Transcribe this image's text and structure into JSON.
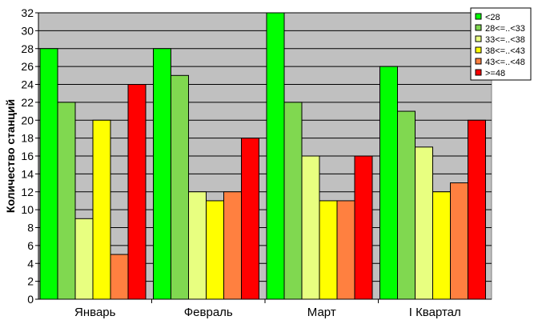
{
  "chart_data": {
    "type": "bar",
    "ylabel": "Количество станций",
    "xlabel": "",
    "ylim": [
      0,
      32
    ],
    "yticks": [
      0,
      2,
      4,
      6,
      8,
      10,
      12,
      14,
      16,
      18,
      20,
      22,
      24,
      26,
      28,
      30,
      32
    ],
    "grid": true,
    "legend_position": "top-right",
    "categories": [
      "Январь",
      "Февраль",
      "Март",
      "I Квартал"
    ],
    "series": [
      {
        "name": "<28",
        "color": "#00ff00",
        "values": [
          28,
          28,
          32,
          26
        ]
      },
      {
        "name": "28<=..<33",
        "color": "#80d850",
        "values": [
          22,
          25,
          22,
          21
        ]
      },
      {
        "name": "33<=..<38",
        "color": "#e8ff80",
        "values": [
          9,
          12,
          16,
          17
        ]
      },
      {
        "name": "38<=..<43",
        "color": "#ffff00",
        "values": [
          20,
          11,
          11,
          12
        ]
      },
      {
        "name": "43<=..<48",
        "color": "#ff8040",
        "values": [
          5,
          12,
          11,
          13
        ]
      },
      {
        "name": ">=48",
        "color": "#ff0000",
        "values": [
          24,
          18,
          16,
          20
        ]
      }
    ],
    "plot_background": "#c0c0c0"
  }
}
